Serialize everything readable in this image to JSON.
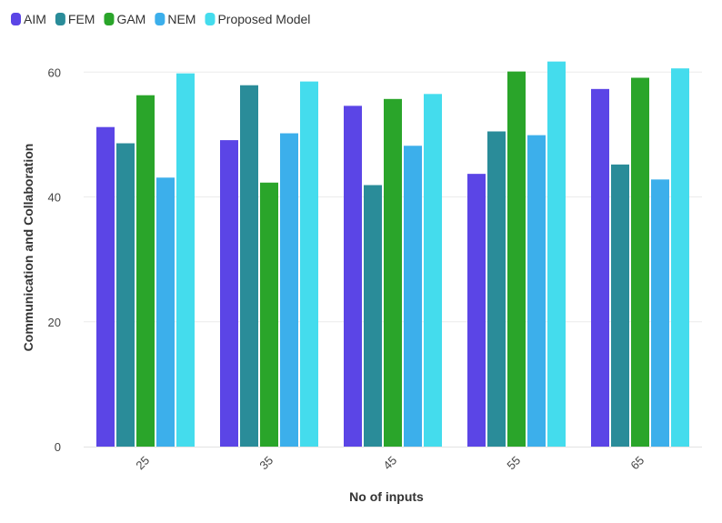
{
  "chart_data": {
    "type": "bar",
    "xlabel": "No of inputs",
    "ylabel": "Communication and Collaboration",
    "categories": [
      "25",
      "35",
      "45",
      "55",
      "65"
    ],
    "ylim": [
      0,
      65
    ],
    "yticks": [
      0,
      20,
      40,
      60
    ],
    "grid": true,
    "legend_position": "top-left",
    "series": [
      {
        "name": "AIM",
        "color": "#5b45e6",
        "values": [
          51.2,
          49.1,
          54.6,
          43.7,
          57.3
        ]
      },
      {
        "name": "FEM",
        "color": "#2a8c99",
        "values": [
          48.6,
          57.9,
          41.9,
          50.5,
          45.2
        ]
      },
      {
        "name": "GAM",
        "color": "#2aa52a",
        "values": [
          56.3,
          42.3,
          55.7,
          60.1,
          59.1
        ]
      },
      {
        "name": "NEM",
        "color": "#3cafeb",
        "values": [
          43.1,
          50.2,
          48.2,
          49.9,
          42.8
        ]
      },
      {
        "name": "Proposed Model",
        "color": "#44dced",
        "values": [
          59.8,
          58.5,
          56.5,
          61.7,
          60.6
        ]
      }
    ]
  }
}
